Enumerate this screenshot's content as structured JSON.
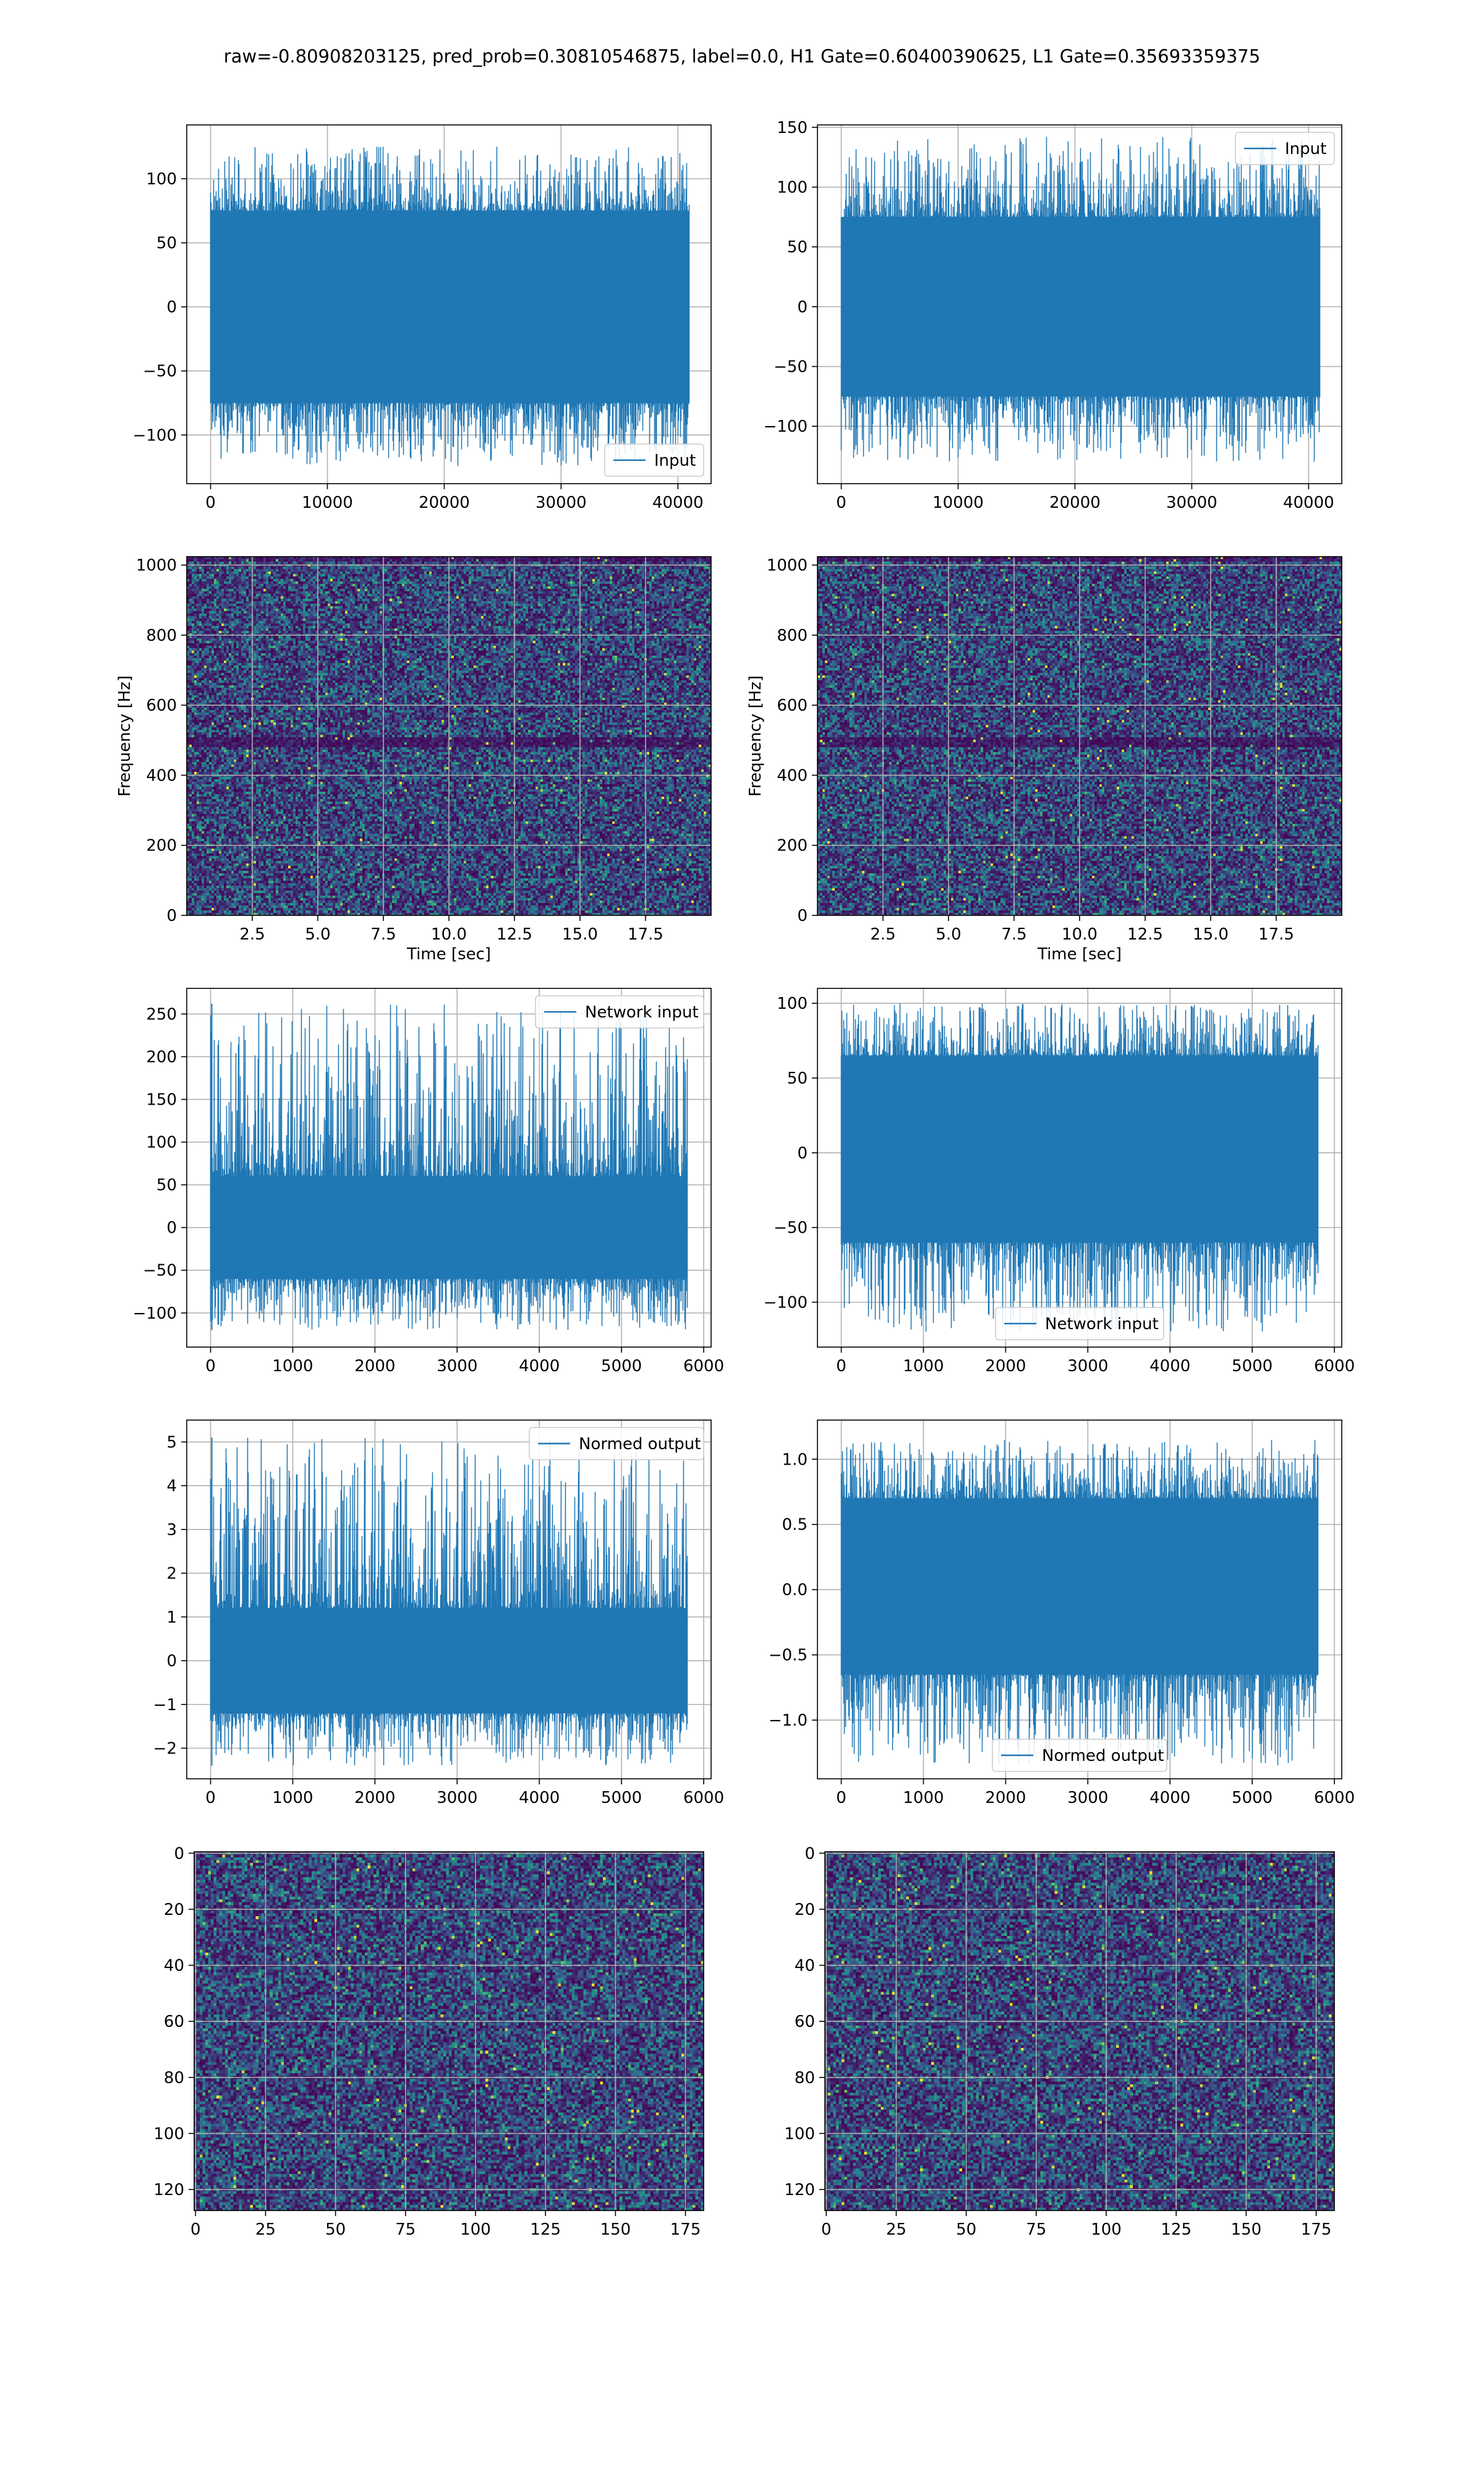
{
  "figure": {
    "title": "raw=-0.80908203125, pred_prob=0.30810546875, label=0.0, H1 Gate=0.60400390625, L1 Gate=0.35693359375"
  },
  "colors": {
    "line": "#1f77b4",
    "grid": "#b0b0b0",
    "viridis_dark": "#440154",
    "viridis_mid": "#21918c",
    "viridis_light": "#fde725"
  },
  "chart_data": [
    {
      "id": "h1-input",
      "type": "line",
      "xlim": [
        -2040,
        42840
      ],
      "ylim": [
        -138,
        142
      ],
      "xticks": [
        0,
        10000,
        20000,
        30000,
        40000
      ],
      "xticklabels": [
        "0",
        "10000",
        "20000",
        "30000",
        "40000"
      ],
      "yticks": [
        -100,
        -50,
        0,
        50,
        100
      ],
      "yticklabels": [
        "−100",
        "−50",
        "0",
        "50",
        "100"
      ],
      "xlabel": "",
      "ylabel": "",
      "series": [
        {
          "name": "Input",
          "n": 40960,
          "envelope_low": -75,
          "envelope_high": 75,
          "max": 125,
          "min": -125
        }
      ],
      "legend": "lower right",
      "grid": true
    },
    {
      "id": "l1-input",
      "type": "line",
      "xlim": [
        -2040,
        42840
      ],
      "ylim": [
        -148,
        152
      ],
      "xticks": [
        0,
        10000,
        20000,
        30000,
        40000
      ],
      "xticklabels": [
        "0",
        "10000",
        "20000",
        "30000",
        "40000"
      ],
      "yticks": [
        -100,
        -50,
        0,
        50,
        100,
        150
      ],
      "yticklabels": [
        "−100",
        "−50",
        "0",
        "50",
        "100",
        "150"
      ],
      "xlabel": "",
      "ylabel": "",
      "series": [
        {
          "name": "Input",
          "n": 40960,
          "envelope_low": -75,
          "envelope_high": 75,
          "max": 142,
          "min": -132
        }
      ],
      "legend": "upper right",
      "grid": true
    },
    {
      "id": "h1-spectrogram",
      "type": "heatmap",
      "xlim": [
        0,
        20
      ],
      "ylim": [
        0,
        1024
      ],
      "xticks": [
        2.5,
        5,
        7.5,
        10,
        12.5,
        15,
        17.5
      ],
      "xticklabels": [
        "2.5",
        "5.0",
        "7.5",
        "10.0",
        "12.5",
        "15.0",
        "17.5"
      ],
      "yticks": [
        0,
        200,
        400,
        600,
        800,
        1000
      ],
      "yticklabels": [
        "0",
        "200",
        "400",
        "600",
        "800",
        "1000"
      ],
      "xlabel": "Time [sec]",
      "ylabel": "Frequency [Hz]",
      "colormap": "viridis",
      "grid": true
    },
    {
      "id": "l1-spectrogram",
      "type": "heatmap",
      "xlim": [
        0,
        20
      ],
      "ylim": [
        0,
        1024
      ],
      "xticks": [
        2.5,
        5,
        7.5,
        10,
        12.5,
        15,
        17.5
      ],
      "xticklabels": [
        "2.5",
        "5.0",
        "7.5",
        "10.0",
        "12.5",
        "15.0",
        "17.5"
      ],
      "yticks": [
        0,
        200,
        400,
        600,
        800,
        1000
      ],
      "yticklabels": [
        "0",
        "200",
        "400",
        "600",
        "800",
        "1000"
      ],
      "xlabel": "Time [sec]",
      "ylabel": "Frequency [Hz]",
      "colormap": "viridis",
      "grid": true
    },
    {
      "id": "h1-network-input",
      "type": "line",
      "xlim": [
        -290,
        6090
      ],
      "ylim": [
        -140,
        280
      ],
      "xticks": [
        0,
        1000,
        2000,
        3000,
        4000,
        5000,
        6000
      ],
      "xticklabels": [
        "0",
        "1000",
        "2000",
        "3000",
        "4000",
        "5000",
        "6000"
      ],
      "yticks": [
        -100,
        -50,
        0,
        50,
        100,
        150,
        200,
        250
      ],
      "yticklabels": [
        "−100",
        "−50",
        "0",
        "50",
        "100",
        "150",
        "200",
        "250"
      ],
      "xlabel": "",
      "ylabel": "",
      "series": [
        {
          "name": "Network input",
          "n": 5800,
          "envelope_low": -60,
          "envelope_high": 60,
          "max": 262,
          "min": -120
        }
      ],
      "legend": "upper right",
      "grid": true
    },
    {
      "id": "l1-network-input",
      "type": "line",
      "xlim": [
        -290,
        6090
      ],
      "ylim": [
        -130,
        110
      ],
      "xticks": [
        0,
        1000,
        2000,
        3000,
        4000,
        5000,
        6000
      ],
      "xticklabels": [
        "0",
        "1000",
        "2000",
        "3000",
        "4000",
        "5000",
        "6000"
      ],
      "yticks": [
        -100,
        -50,
        0,
        50,
        100
      ],
      "yticklabels": [
        "−100",
        "−50",
        "0",
        "50",
        "100"
      ],
      "xlabel": "",
      "ylabel": "",
      "series": [
        {
          "name": "Network input",
          "n": 5800,
          "envelope_low": -60,
          "envelope_high": 65,
          "max": 100,
          "min": -120
        }
      ],
      "legend": "lower center",
      "grid": true
    },
    {
      "id": "h1-normed-output",
      "type": "line",
      "xlim": [
        -290,
        6090
      ],
      "ylim": [
        -2.7,
        5.5
      ],
      "xticks": [
        0,
        1000,
        2000,
        3000,
        4000,
        5000,
        6000
      ],
      "xticklabels": [
        "0",
        "1000",
        "2000",
        "3000",
        "4000",
        "5000",
        "6000"
      ],
      "yticks": [
        -2,
        -1,
        0,
        1,
        2,
        3,
        4,
        5
      ],
      "yticklabels": [
        "−2",
        "−1",
        "0",
        "1",
        "2",
        "3",
        "4",
        "5"
      ],
      "xlabel": "",
      "ylabel": "",
      "series": [
        {
          "name": "Normed output",
          "n": 5800,
          "envelope_low": -1.2,
          "envelope_high": 1.2,
          "max": 5.1,
          "min": -2.4
        }
      ],
      "legend": "upper right",
      "grid": true
    },
    {
      "id": "l1-normed-output",
      "type": "line",
      "xlim": [
        -290,
        6090
      ],
      "ylim": [
        -1.45,
        1.3
      ],
      "xticks": [
        0,
        1000,
        2000,
        3000,
        4000,
        5000,
        6000
      ],
      "xticklabels": [
        "0",
        "1000",
        "2000",
        "3000",
        "4000",
        "5000",
        "6000"
      ],
      "yticks": [
        -1,
        -0.5,
        0,
        0.5,
        1
      ],
      "yticklabels": [
        "−1.0",
        "−0.5",
        "0.0",
        "0.5",
        "1.0"
      ],
      "xlabel": "",
      "ylabel": "",
      "series": [
        {
          "name": "Normed output",
          "n": 5800,
          "envelope_low": -0.65,
          "envelope_high": 0.7,
          "max": 1.15,
          "min": -1.35
        }
      ],
      "legend": "lower center",
      "grid": true
    },
    {
      "id": "h1-image",
      "type": "heatmap",
      "xlim": [
        -0.5,
        181.5
      ],
      "ylim": [
        127.5,
        -0.5
      ],
      "rows": 128,
      "cols": 182,
      "xticks": [
        0,
        25,
        50,
        75,
        100,
        125,
        150,
        175
      ],
      "xticklabels": [
        "0",
        "25",
        "50",
        "75",
        "100",
        "125",
        "150",
        "175"
      ],
      "yticks": [
        0,
        20,
        40,
        60,
        80,
        100,
        120
      ],
      "yticklabels": [
        "0",
        "20",
        "40",
        "60",
        "80",
        "100",
        "120"
      ],
      "xlabel": "",
      "ylabel": "",
      "colormap": "viridis",
      "grid": true
    },
    {
      "id": "l1-image",
      "type": "heatmap",
      "xlim": [
        -0.5,
        181.5
      ],
      "ylim": [
        127.5,
        -0.5
      ],
      "rows": 128,
      "cols": 182,
      "xticks": [
        0,
        25,
        50,
        75,
        100,
        125,
        150,
        175
      ],
      "xticklabels": [
        "0",
        "25",
        "50",
        "75",
        "100",
        "125",
        "150",
        "175"
      ],
      "yticks": [
        0,
        20,
        40,
        60,
        80,
        100,
        120
      ],
      "yticklabels": [
        "0",
        "20",
        "40",
        "60",
        "80",
        "100",
        "120"
      ],
      "xlabel": "",
      "ylabel": "",
      "colormap": "viridis",
      "grid": true
    }
  ]
}
